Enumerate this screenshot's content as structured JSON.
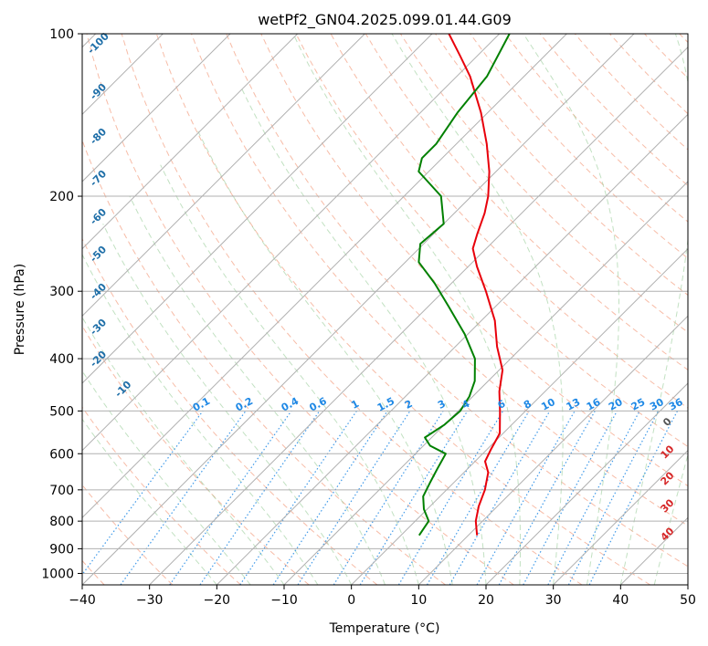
{
  "chart_data": {
    "type": "skew-t",
    "title": "wetPf2_GN04.2025.099.01.44.G09",
    "xlabel": "Temperature (°C)",
    "ylabel": "Pressure (hPa)",
    "xlim": [
      -40,
      50
    ],
    "ylim": [
      1050,
      100
    ],
    "x_ticks": [
      "−40",
      "−30",
      "−20",
      "−10",
      "0",
      "10",
      "20",
      "30",
      "40",
      "50"
    ],
    "x_tick_values": [
      -40,
      -30,
      -20,
      -10,
      0,
      10,
      20,
      30,
      40,
      50
    ],
    "y_ticks": [
      "100",
      "200",
      "300",
      "400",
      "500",
      "600",
      "700",
      "800",
      "900",
      "1000"
    ],
    "y_tick_values": [
      100,
      200,
      300,
      400,
      500,
      600,
      700,
      800,
      900,
      1000
    ],
    "grid": true,
    "series": [
      {
        "name": "Temperature",
        "color": "#e8000b",
        "points": [
          {
            "p": 850,
            "t": 11.3
          },
          {
            "p": 800,
            "t": 9.0
          },
          {
            "p": 750,
            "t": 7.2
          },
          {
            "p": 700,
            "t": 5.7
          },
          {
            "p": 650,
            "t": 3.6
          },
          {
            "p": 620,
            "t": 1.5
          },
          {
            "p": 590,
            "t": 0.6
          },
          {
            "p": 550,
            "t": -0.5
          },
          {
            "p": 500,
            "t": -3.8
          },
          {
            "p": 460,
            "t": -6.8
          },
          {
            "p": 420,
            "t": -9.5
          },
          {
            "p": 380,
            "t": -13.8
          },
          {
            "p": 340,
            "t": -18.0
          },
          {
            "p": 300,
            "t": -23.7
          },
          {
            "p": 270,
            "t": -28.7
          },
          {
            "p": 250,
            "t": -32.0
          },
          {
            "p": 235,
            "t": -33.5
          },
          {
            "p": 215,
            "t": -35.5
          },
          {
            "p": 200,
            "t": -37.5
          },
          {
            "p": 180,
            "t": -41.0
          },
          {
            "p": 160,
            "t": -45.5
          },
          {
            "p": 140,
            "t": -51.0
          },
          {
            "p": 120,
            "t": -58.0
          },
          {
            "p": 110,
            "t": -62.5
          },
          {
            "p": 100,
            "t": -67.5
          }
        ]
      },
      {
        "name": "Dewpoint",
        "color": "#008000",
        "points": [
          {
            "p": 850,
            "t": 2.7
          },
          {
            "p": 800,
            "t": 2.0
          },
          {
            "p": 760,
            "t": -0.5
          },
          {
            "p": 720,
            "t": -2.5
          },
          {
            "p": 680,
            "t": -3.5
          },
          {
            "p": 640,
            "t": -4.5
          },
          {
            "p": 600,
            "t": -5.5
          },
          {
            "p": 580,
            "t": -9.0
          },
          {
            "p": 560,
            "t": -11.0
          },
          {
            "p": 530,
            "t": -10.0
          },
          {
            "p": 500,
            "t": -9.7
          },
          {
            "p": 470,
            "t": -10.5
          },
          {
            "p": 440,
            "t": -12.0
          },
          {
            "p": 400,
            "t": -15.3
          },
          {
            "p": 360,
            "t": -20.5
          },
          {
            "p": 320,
            "t": -27.0
          },
          {
            "p": 290,
            "t": -32.5
          },
          {
            "p": 265,
            "t": -38.0
          },
          {
            "p": 245,
            "t": -40.5
          },
          {
            "p": 225,
            "t": -40.0
          },
          {
            "p": 200,
            "t": -44.5
          },
          {
            "p": 180,
            "t": -51.5
          },
          {
            "p": 170,
            "t": -53.0
          },
          {
            "p": 160,
            "t": -53.0
          },
          {
            "p": 140,
            "t": -54.5
          },
          {
            "p": 120,
            "t": -55.5
          },
          {
            "p": 100,
            "t": -58.5
          }
        ]
      }
    ],
    "annotations": {
      "dry_adiabat_labels": [
        "-100",
        "-90",
        "-80",
        "-70",
        "-60",
        "-50",
        "-40",
        "-30",
        "-20",
        "-10"
      ],
      "dry_adiabat_values": [
        -100,
        -90,
        -80,
        -70,
        -60,
        -50,
        -40,
        -30,
        -20,
        -10
      ],
      "dry_adiabat_color": "#1f6fa8",
      "mixing_ratio_labels": [
        "0.1",
        "0.2",
        "0.4",
        "0.6",
        "1",
        "1.5",
        "2",
        "3",
        "4",
        "6",
        "8",
        "10",
        "13",
        "16",
        "20",
        "25",
        "30",
        "36"
      ],
      "mixing_ratio_values": [
        0.1,
        0.2,
        0.4,
        0.6,
        1,
        1.5,
        2,
        3,
        4,
        6,
        8,
        10,
        13,
        16,
        20,
        25,
        30,
        36
      ],
      "mixing_ratio_color": "#1e88e5",
      "moist_adiabat_labels": [
        "0",
        "10",
        "20",
        "30",
        "40"
      ],
      "moist_adiabat_values": [
        0,
        10,
        20,
        30,
        40
      ],
      "moist_adiabat_colors": [
        "#555555",
        "#d62728",
        "#d62728",
        "#d62728",
        "#d62728"
      ]
    }
  }
}
